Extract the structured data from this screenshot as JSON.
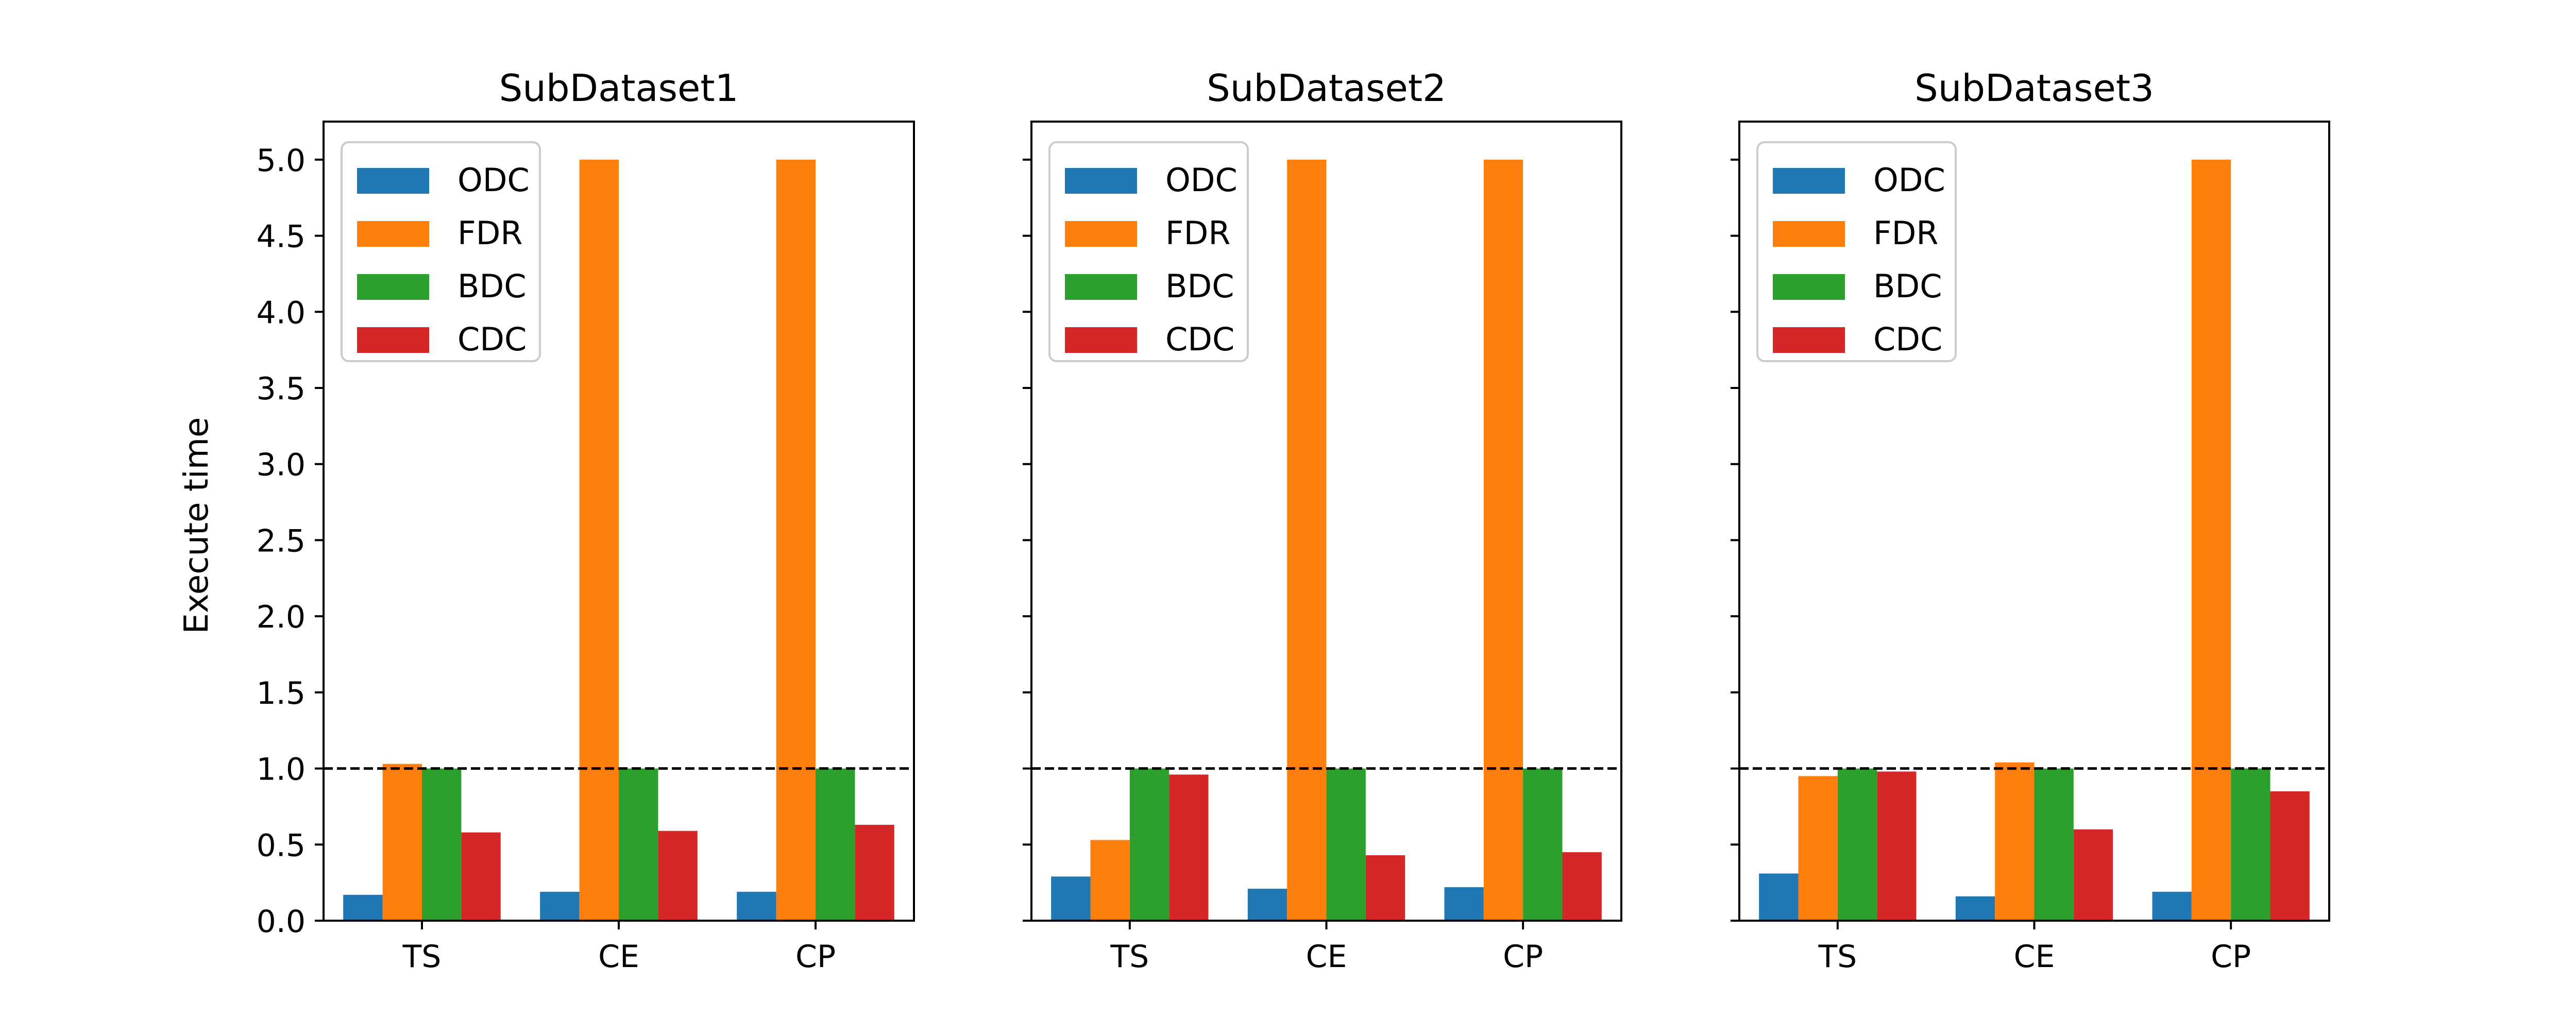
{
  "figure": {
    "ylabel": "Execute time",
    "yticks": [
      0.0,
      0.5,
      1.0,
      1.5,
      2.0,
      2.5,
      3.0,
      3.5,
      4.0,
      4.5,
      5.0
    ],
    "ylim": [
      0,
      5.25
    ],
    "reference_line": 1.0
  },
  "chart_data": [
    {
      "type": "bar",
      "title": "SubDataset1",
      "categories": [
        "TS",
        "CE",
        "CP"
      ],
      "ylabel": "Execute time",
      "ylim": [
        0,
        5.25
      ],
      "legend": "top-left",
      "series": [
        {
          "name": "ODC",
          "color": "#1f77b4",
          "values": [
            0.17,
            0.19,
            0.19
          ]
        },
        {
          "name": "FDR",
          "color": "#ff7f0e",
          "values": [
            1.03,
            5.0,
            5.0
          ]
        },
        {
          "name": "BDC",
          "color": "#2ca02c",
          "values": [
            1.0,
            1.0,
            1.0
          ]
        },
        {
          "name": "CDC",
          "color": "#d62728",
          "values": [
            0.58,
            0.59,
            0.63
          ]
        }
      ]
    },
    {
      "type": "bar",
      "title": "SubDataset2",
      "categories": [
        "TS",
        "CE",
        "CP"
      ],
      "ylim": [
        0,
        5.25
      ],
      "legend": "top-left",
      "series": [
        {
          "name": "ODC",
          "color": "#1f77b4",
          "values": [
            0.29,
            0.21,
            0.22
          ]
        },
        {
          "name": "FDR",
          "color": "#ff7f0e",
          "values": [
            0.53,
            5.0,
            5.0
          ]
        },
        {
          "name": "BDC",
          "color": "#2ca02c",
          "values": [
            1.0,
            1.0,
            1.0
          ]
        },
        {
          "name": "CDC",
          "color": "#d62728",
          "values": [
            0.96,
            0.43,
            0.45
          ]
        }
      ]
    },
    {
      "type": "bar",
      "title": "SubDataset3",
      "categories": [
        "TS",
        "CE",
        "CP"
      ],
      "ylim": [
        0,
        5.25
      ],
      "legend": "top-left",
      "series": [
        {
          "name": "ODC",
          "color": "#1f77b4",
          "values": [
            0.31,
            0.16,
            0.19
          ]
        },
        {
          "name": "FDR",
          "color": "#ff7f0e",
          "values": [
            0.95,
            1.04,
            5.0
          ]
        },
        {
          "name": "BDC",
          "color": "#2ca02c",
          "values": [
            1.0,
            1.0,
            1.0
          ]
        },
        {
          "name": "CDC",
          "color": "#d62728",
          "values": [
            0.98,
            0.6,
            0.85
          ]
        }
      ]
    }
  ]
}
